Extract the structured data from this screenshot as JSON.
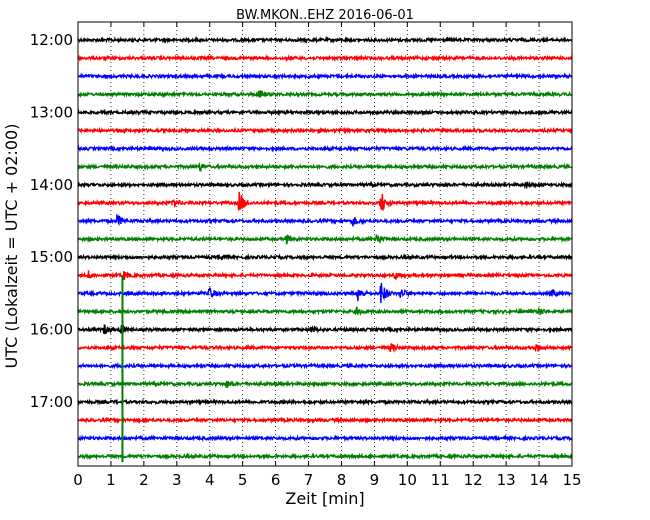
{
  "chart_data": {
    "type": "line",
    "title": "BW.MKON..EHZ 2016-06-01",
    "xlabel": "Zeit  [min]",
    "ylabel": "UTC (Lokalzeit = UTC + 02:00)",
    "xlim": [
      0,
      15
    ],
    "x_ticks": [
      "0",
      "1",
      "2",
      "3",
      "4",
      "5",
      "6",
      "7",
      "8",
      "9",
      "10",
      "11",
      "12",
      "13",
      "14",
      "15"
    ],
    "y_tick_labels": [
      "12:00",
      "13:00",
      "14:00",
      "15:00",
      "16:00",
      "17:00"
    ],
    "grid": "vertical-dotted",
    "trace_interval_min": 15,
    "traces": [
      {
        "start": "12:00",
        "color": "#000000",
        "events": []
      },
      {
        "start": "12:15",
        "color": "#ff0000",
        "events": []
      },
      {
        "start": "12:30",
        "color": "#0000ff",
        "events": []
      },
      {
        "start": "12:45",
        "color": "#008000",
        "events": [
          {
            "t": 5.5,
            "amp": 0.35
          }
        ]
      },
      {
        "start": "13:00",
        "color": "#000000",
        "events": []
      },
      {
        "start": "13:15",
        "color": "#ff0000",
        "events": []
      },
      {
        "start": "13:30",
        "color": "#0000ff",
        "events": []
      },
      {
        "start": "13:45",
        "color": "#008000",
        "events": [
          {
            "t": 3.7,
            "amp": 0.25
          }
        ]
      },
      {
        "start": "14:00",
        "color": "#000000",
        "events": [
          {
            "t": 13.6,
            "amp": 0.25
          }
        ]
      },
      {
        "start": "14:15",
        "color": "#ff0000",
        "events": [
          {
            "t": 2.9,
            "amp": 0.35
          },
          {
            "t": 4.9,
            "amp": 0.9
          },
          {
            "t": 9.2,
            "amp": 0.9
          }
        ]
      },
      {
        "start": "14:30",
        "color": "#0000ff",
        "events": [
          {
            "t": 1.2,
            "amp": 0.45
          },
          {
            "t": 8.35,
            "amp": 0.35
          }
        ]
      },
      {
        "start": "14:45",
        "color": "#008000",
        "events": [
          {
            "t": 6.3,
            "amp": 0.4
          },
          {
            "t": 9.05,
            "amp": 0.45
          }
        ]
      },
      {
        "start": "15:00",
        "color": "#000000",
        "events": [
          {
            "t": 4.4,
            "amp": 0.25
          }
        ]
      },
      {
        "start": "15:15",
        "color": "#ff0000",
        "events": [
          {
            "t": 0.3,
            "amp": 0.3
          },
          {
            "t": 1.4,
            "amp": 0.3
          },
          {
            "t": 9.6,
            "amp": 0.35
          }
        ]
      },
      {
        "start": "15:30",
        "color": "#0000ff",
        "events": [
          {
            "t": 4.0,
            "amp": 0.45
          },
          {
            "t": 8.5,
            "amp": 0.6
          },
          {
            "t": 9.2,
            "amp": 1.0
          },
          {
            "t": 9.8,
            "amp": 0.4
          },
          {
            "t": 14.4,
            "amp": 0.3
          }
        ]
      },
      {
        "start": "15:45",
        "color": "#008000",
        "events": [
          {
            "t": 8.45,
            "amp": 0.3
          },
          {
            "t": 14.0,
            "amp": 0.3
          }
        ]
      },
      {
        "start": "16:00",
        "color": "#000000",
        "events": [
          {
            "t": 0.8,
            "amp": 0.35
          },
          {
            "t": 1.3,
            "amp": 0.3
          },
          {
            "t": 7.1,
            "amp": 0.25
          }
        ]
      },
      {
        "start": "16:15",
        "color": "#ff0000",
        "events": [
          {
            "t": 9.5,
            "amp": 0.3
          },
          {
            "t": 13.9,
            "amp": 0.35
          }
        ]
      },
      {
        "start": "16:30",
        "color": "#0000ff",
        "events": []
      },
      {
        "start": "16:45",
        "color": "#008000",
        "events": [
          {
            "t": 4.5,
            "amp": 0.25
          }
        ]
      },
      {
        "start": "17:00",
        "color": "#000000",
        "events": []
      },
      {
        "start": "17:15",
        "color": "#ff0000",
        "events": []
      },
      {
        "start": "17:30",
        "color": "#0000ff",
        "events": []
      },
      {
        "start": "17:45",
        "color": "#008000",
        "events": []
      }
    ],
    "long_period_pulse": {
      "t": 1.35,
      "from_trace": "15:15",
      "to_trace": "17:45",
      "color": "#008000"
    }
  }
}
